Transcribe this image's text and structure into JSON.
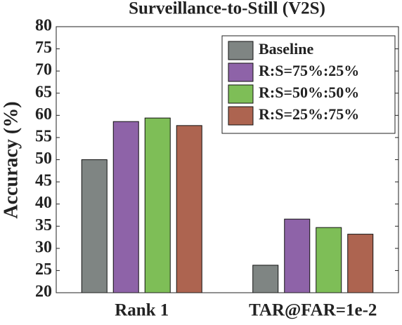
{
  "chart_data": {
    "type": "bar",
    "title": "Surveillance-to-Still (V2S)",
    "y_label": "Accuracy (%)",
    "categories": [
      "Rank 1",
      "TAR@FAR=1e-2"
    ],
    "series": [
      {
        "name": "Baseline",
        "color": "#7f8583",
        "values": [
          50,
          26.2
        ]
      },
      {
        "name": "R:S=75%:25%",
        "color": "#8e63a8",
        "values": [
          58.6,
          36.6
        ]
      },
      {
        "name": "R:S=50%:50%",
        "color": "#7ebe57",
        "values": [
          59.4,
          34.7
        ]
      },
      {
        "name": "R:S=25%:75%",
        "color": "#ad6450",
        "values": [
          57.7,
          33.2
        ]
      }
    ],
    "ylim": [
      20,
      80
    ],
    "yticks": [
      20,
      25,
      30,
      35,
      40,
      45,
      50,
      55,
      60,
      65,
      70,
      75,
      80
    ],
    "grid": false,
    "legend": "upper right"
  }
}
